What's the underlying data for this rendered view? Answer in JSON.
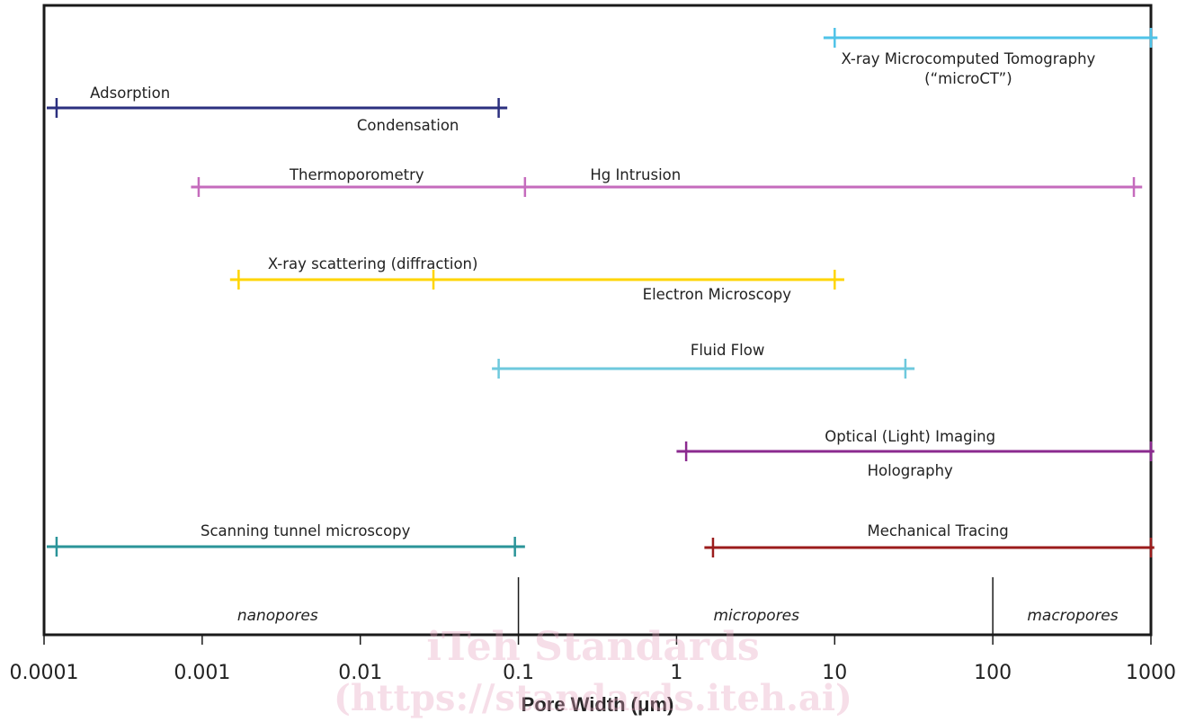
{
  "watermark": {
    "line1": "iTeh Standards",
    "line2": "(https://standards.iteh.ai)"
  },
  "chart_data": {
    "type": "range",
    "title": "",
    "xlabel": "Pore Width (μm)",
    "ylabel": "",
    "x_scale": "log",
    "xlim": [
      0.0001,
      1000
    ],
    "x_ticks": [
      {
        "value": 0.0001,
        "label": "0.0001"
      },
      {
        "value": 0.001,
        "label": "0.001"
      },
      {
        "value": 0.01,
        "label": "0.01"
      },
      {
        "value": 0.1,
        "label": "0.1"
      },
      {
        "value": 1,
        "label": "1"
      },
      {
        "value": 10,
        "label": "10"
      },
      {
        "value": 100,
        "label": "100"
      },
      {
        "value": 1000,
        "label": "1000"
      }
    ],
    "grid": false,
    "legend": "none",
    "ranges": [
      {
        "id": "microct",
        "color": "#4fc3e8",
        "start": 10,
        "end": 1000,
        "extent_start": 8.5,
        "extent_end": 1100,
        "interior_ticks": []
      },
      {
        "id": "adsorption",
        "color": "#2b2f7f",
        "start": 0.00012,
        "end": 0.075,
        "extent_start": 0.0001,
        "extent_end": 0.085,
        "interior_ticks": []
      },
      {
        "id": "thermo",
        "color": "#c56bbd",
        "start": 0.00095,
        "end": 780,
        "extent_start": 0.00085,
        "extent_end": 880,
        "interior_ticks": [
          0.11
        ]
      },
      {
        "id": "xray",
        "color": "#ffd500",
        "start": 0.0017,
        "end": 10,
        "extent_start": 0.0015,
        "extent_end": 11.5,
        "interior_ticks": [
          0.029
        ]
      },
      {
        "id": "fluid",
        "color": "#6ec9dd",
        "start": 0.075,
        "end": 28,
        "extent_start": 0.068,
        "extent_end": 32,
        "interior_ticks": []
      },
      {
        "id": "optical",
        "color": "#8b2a8f",
        "start": 1.15,
        "end": 1000,
        "extent_start": 1.0,
        "extent_end": 1050,
        "interior_ticks": []
      },
      {
        "id": "stm",
        "color": "#2a9499",
        "start": 0.00012,
        "end": 0.095,
        "extent_start": 0.0001,
        "extent_end": 0.11,
        "interior_ticks": []
      },
      {
        "id": "mech",
        "color": "#9b1c1c",
        "start": 1.7,
        "end": 1000,
        "extent_start": 1.5,
        "extent_end": 1050,
        "interior_ticks": []
      }
    ],
    "annotations": [
      {
        "text": "X-ray Microcomputed Tomography",
        "x": 70,
        "italic": false
      },
      {
        "text": "(“microCT”)",
        "x": 70,
        "italic": false
      },
      {
        "text": "Adsorption",
        "x": 0.00035,
        "italic": false
      },
      {
        "text": "Condensation",
        "x": 0.02,
        "italic": false
      },
      {
        "text": "Thermoporometry",
        "x": 0.0095,
        "italic": false
      },
      {
        "text": "Hg Intrusion",
        "x": 0.55,
        "italic": false
      },
      {
        "text": "X-ray scattering (diffraction)",
        "x": 0.012,
        "italic": false
      },
      {
        "text": "Electron Microscopy",
        "x": 1.8,
        "italic": false
      },
      {
        "text": "Fluid Flow",
        "x": 2.1,
        "italic": false
      },
      {
        "text": "Optical (Light) Imaging",
        "x": 30,
        "italic": false
      },
      {
        "text": "Holography",
        "x": 30,
        "italic": false
      },
      {
        "text": "Scanning tunnel microscopy",
        "x": 0.0045,
        "italic": false
      },
      {
        "text": "Mechanical Tracing",
        "x": 45,
        "italic": false
      },
      {
        "text": "nanopores",
        "x": 0.003,
        "italic": true
      },
      {
        "text": "micropores",
        "x": 3.2,
        "italic": true
      },
      {
        "text": "macropores",
        "x": 320,
        "italic": true
      }
    ],
    "region_dividers": [
      0.1,
      100
    ]
  }
}
